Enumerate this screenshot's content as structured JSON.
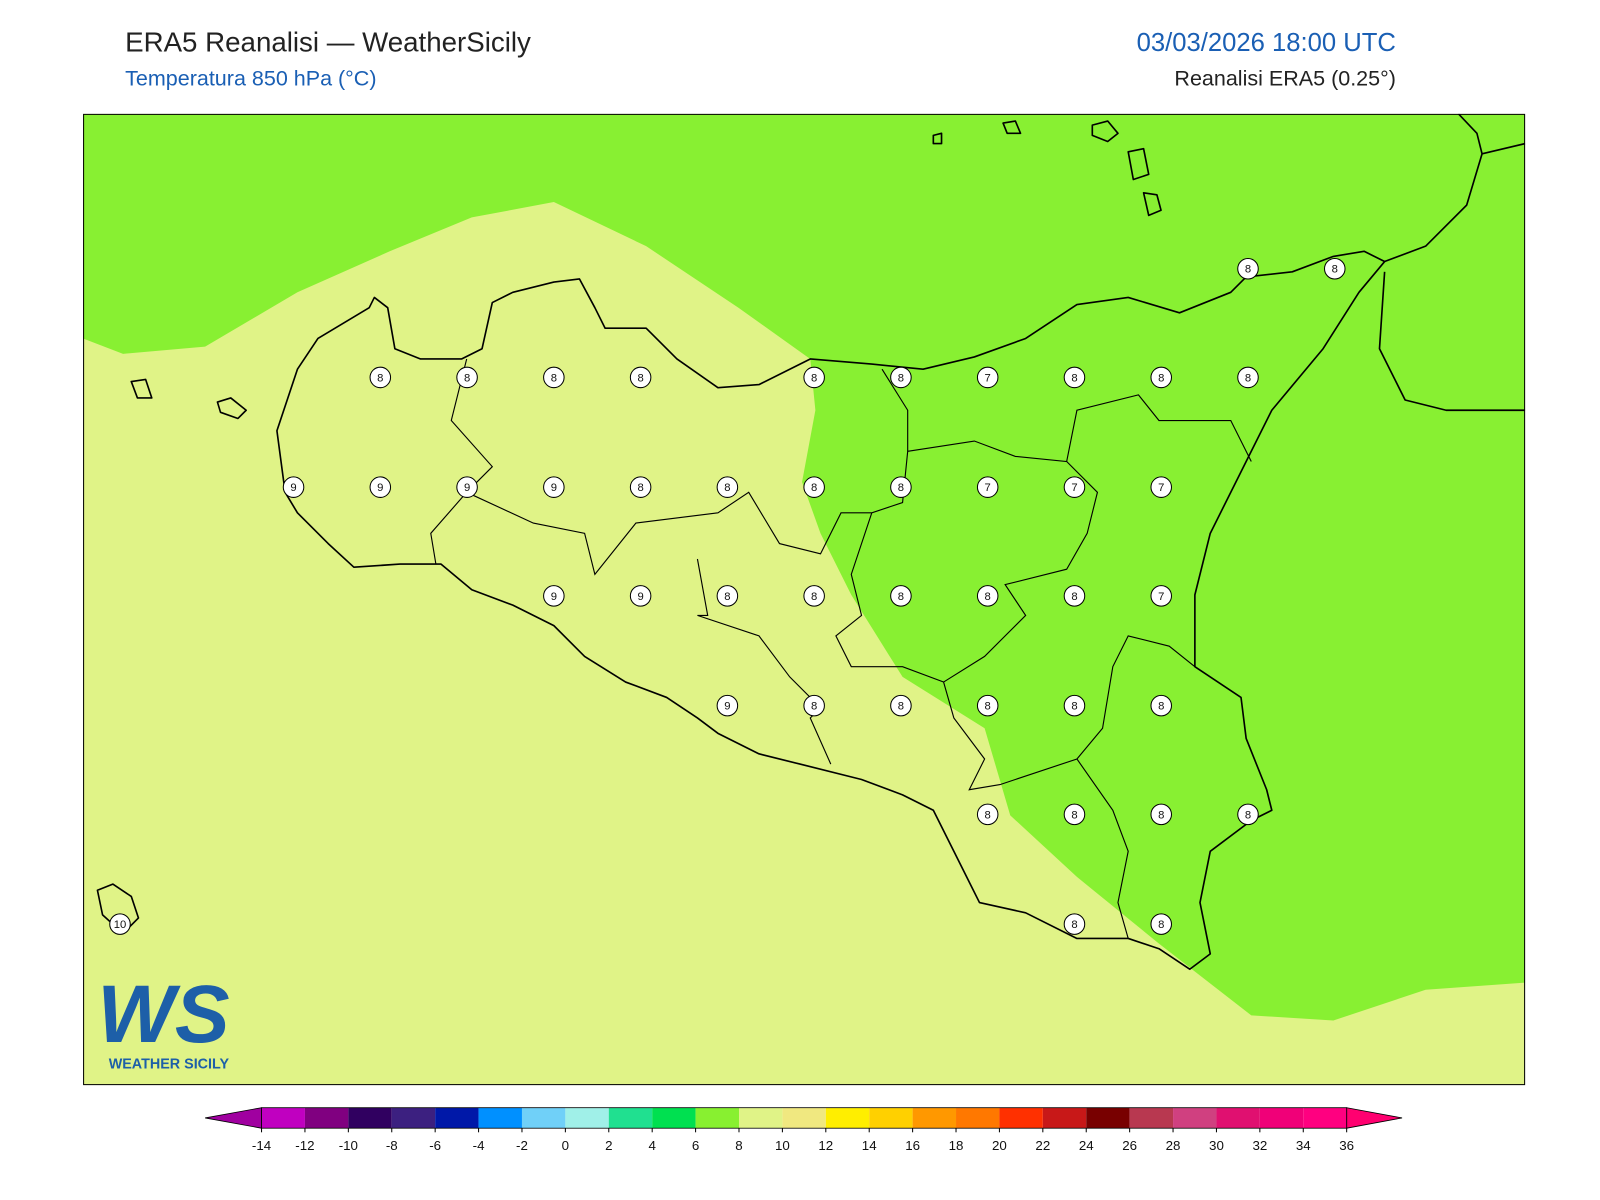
{
  "header": {
    "title": "ERA5 Reanalisi — WeatherSicily",
    "subtitle": "Temperatura 850 hPa (°C)",
    "datetime": "03/03/2026 18:00 UTC",
    "source": "Reanalisi ERA5 (0.25°)"
  },
  "logo": {
    "letters": "WS",
    "text": "WEATHER SICILY"
  },
  "field": {
    "colors": [
      "#e0f387",
      "#88f032"
    ],
    "levels": [
      8,
      6
    ]
  },
  "grid_values": [
    [
      null,
      null,
      null,
      null,
      null,
      null,
      null,
      null,
      null,
      null,
      null,
      null,
      null,
      8,
      8
    ],
    [
      null,
      null,
      null,
      8,
      8,
      8,
      8,
      null,
      8,
      8,
      7,
      8,
      8,
      8,
      null
    ],
    [
      null,
      null,
      9,
      9,
      9,
      9,
      8,
      8,
      8,
      8,
      7,
      7,
      7,
      null,
      null
    ],
    [
      null,
      null,
      null,
      null,
      null,
      9,
      9,
      8,
      8,
      8,
      8,
      8,
      7,
      null,
      null
    ],
    [
      null,
      null,
      null,
      null,
      null,
      null,
      null,
      9,
      8,
      8,
      8,
      8,
      8,
      null,
      null
    ],
    [
      null,
      null,
      null,
      null,
      null,
      null,
      null,
      null,
      null,
      null,
      8,
      8,
      8,
      8,
      null
    ],
    [
      10,
      null,
      null,
      null,
      null,
      null,
      null,
      null,
      null,
      null,
      null,
      8,
      8,
      null,
      null
    ]
  ],
  "colorbar": {
    "ticks": [
      -14,
      -12,
      -10,
      -8,
      -6,
      -4,
      -2,
      0,
      2,
      4,
      6,
      8,
      10,
      12,
      14,
      16,
      18,
      20,
      22,
      24,
      26,
      28,
      30,
      32,
      34,
      36
    ],
    "under": "#a000a0",
    "over": "#ff0070",
    "colors": [
      "#c000c0",
      "#800080",
      "#300060",
      "#3c2080",
      "#0018a8",
      "#0090ff",
      "#70d0f8",
      "#a0f0e8",
      "#20e090",
      "#00e050",
      "#88f030",
      "#e0f387",
      "#f0e880",
      "#ffee00",
      "#ffd000",
      "#ff9800",
      "#ff7800",
      "#ff3000",
      "#c81818",
      "#780000",
      "#b83850",
      "#d04080",
      "#e01070",
      "#f00078",
      "#ff0080"
    ]
  }
}
